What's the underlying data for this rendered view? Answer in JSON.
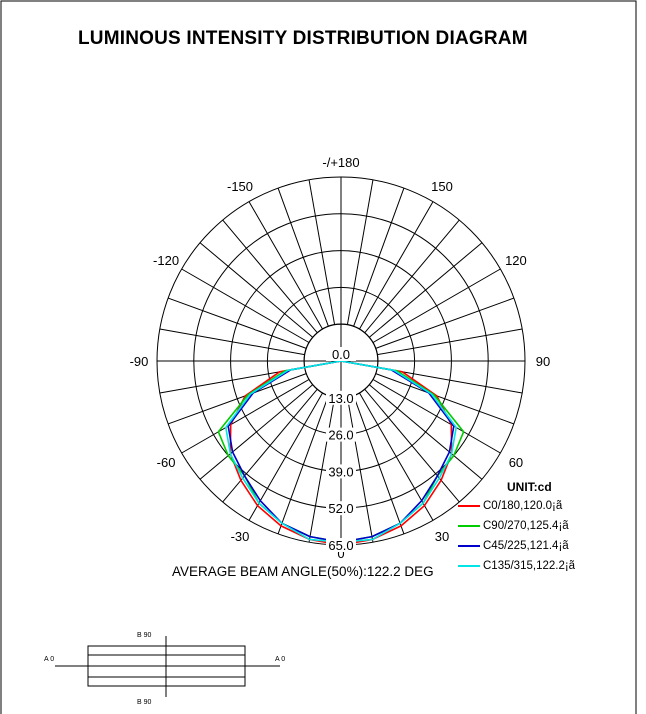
{
  "title": "LUMINOUS INTENSITY DISTRIBUTION DIAGRAM",
  "beam_angle_text": "AVERAGE BEAM ANGLE(50%):122.2 DEG",
  "unit_label": "UNIT:cd",
  "chart_data": {
    "type": "polar",
    "angle_ticks": [
      "-/+180",
      "-150",
      "150",
      "-120",
      "120",
      "-90",
      "90",
      "-60",
      "60",
      "-30",
      "30",
      "0"
    ],
    "angle_tick_values": [
      180,
      -150,
      150,
      -120,
      120,
      -90,
      90,
      -60,
      60,
      -30,
      30,
      0
    ],
    "radial_labels": [
      "0.0",
      "13.0",
      "26.0",
      "39.0",
      "52.0",
      "65.0"
    ],
    "radial_values": [
      0,
      13,
      26,
      39,
      52,
      65
    ],
    "rmax": 65,
    "angular_grid_step_deg": 10,
    "series": [
      {
        "name": "C0/180,120.0¡ã",
        "color": "#ff0000",
        "angles": [
          -90,
          -80,
          -70,
          -60,
          -50,
          -40,
          -30,
          -20,
          -10,
          0,
          10,
          20,
          30,
          40,
          50,
          60,
          70,
          80,
          90
        ],
        "values": [
          0,
          22,
          36,
          45,
          51,
          55,
          59,
          62,
          64,
          65,
          64,
          62,
          59,
          55,
          51,
          45,
          36,
          22,
          0
        ]
      },
      {
        "name": "C90/270,125.4¡ã",
        "color": "#00cc00",
        "angles": [
          -90,
          -80,
          -70,
          -60,
          -50,
          -40,
          -30,
          -20,
          -10,
          0,
          10,
          20,
          30,
          40,
          50,
          60,
          70,
          80,
          90
        ],
        "values": [
          0,
          20,
          35,
          50,
          52,
          53,
          58,
          61,
          63,
          64,
          63,
          61,
          58,
          53,
          52,
          50,
          35,
          20,
          0
        ]
      },
      {
        "name": "C45/225,121.4¡ã",
        "color": "#0000cc",
        "angles": [
          -90,
          -80,
          -70,
          -60,
          -50,
          -40,
          -30,
          -20,
          -10,
          0,
          10,
          20,
          30,
          40,
          50,
          60,
          70,
          80,
          90
        ],
        "values": [
          0,
          18,
          33,
          46,
          50,
          53,
          57,
          61,
          63,
          64,
          63,
          61,
          57,
          53,
          50,
          46,
          33,
          18,
          0
        ]
      },
      {
        "name": "C135/315,122.2¡ã",
        "color": "#00e5e5",
        "angles": [
          -90,
          -80,
          -70,
          -60,
          -50,
          -40,
          -30,
          -20,
          -10,
          0,
          10,
          20,
          30,
          40,
          50,
          60,
          70,
          80,
          90
        ],
        "values": [
          0,
          19,
          34,
          47,
          51,
          54,
          58,
          61,
          64,
          64,
          64,
          61,
          58,
          54,
          51,
          47,
          34,
          19,
          0
        ]
      }
    ]
  },
  "drawing": {
    "top_label": "B 90",
    "bottom_label": "B 90",
    "left_label": "A 0",
    "right_label": "A 0"
  }
}
